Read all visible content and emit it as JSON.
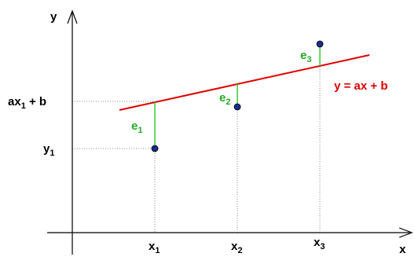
{
  "axes": {
    "x_label": "x",
    "y_label": "y"
  },
  "line": {
    "equation": "y = ax + b",
    "color": "#e00000"
  },
  "y_ticks": {
    "fitted": {
      "base": "ax",
      "sub": "1",
      "rest": " + b"
    },
    "observed": {
      "base": "y",
      "sub": "1"
    }
  },
  "x_ticks": [
    {
      "base": "x",
      "sub": "1"
    },
    {
      "base": "x",
      "sub": "2"
    },
    {
      "base": "x",
      "sub": "3"
    }
  ],
  "errors": [
    {
      "base": "e",
      "sub": "1"
    },
    {
      "base": "e",
      "sub": "2"
    },
    {
      "base": "e",
      "sub": "3"
    }
  ],
  "colors": {
    "axis": "#000000",
    "residual": "#33cc33",
    "residual_label": "#22aa22",
    "point_fill": "#1a2d8c",
    "guide": "#888888"
  }
}
